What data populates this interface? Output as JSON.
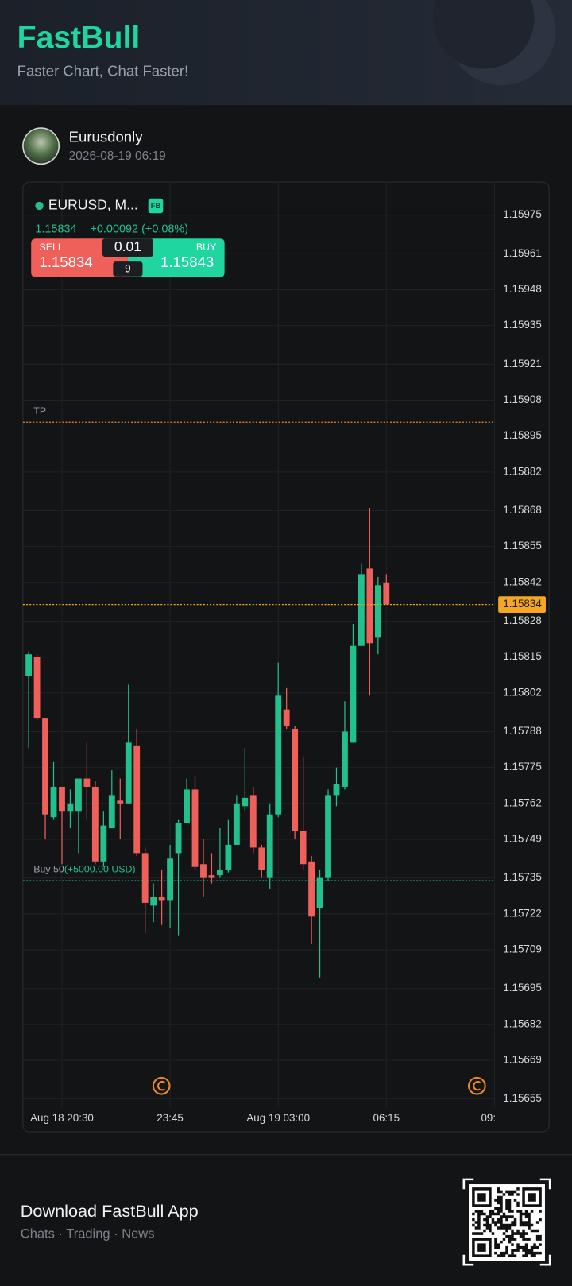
{
  "header": {
    "title": "FastBull",
    "subtitle": "Faster Chart, Chat Faster!"
  },
  "post": {
    "user": "Eurusdonly",
    "time": "2026-08-19 06:19"
  },
  "ticker": {
    "symbol": "EURUSD, M...",
    "badge": "FB",
    "price": "1.15834",
    "change": "+0.00092 (+0.08%)",
    "sell_label": "SELL",
    "sell_price": "1.15834",
    "lot": "0.01",
    "buy_label": "BUY",
    "buy_price": "1.15843",
    "spread": "9"
  },
  "chart_data": {
    "type": "candlestick",
    "categories": [
      null,
      null,
      null,
      null,
      "Aug 18 20:30",
      null,
      null,
      null,
      null,
      null,
      null,
      null,
      null,
      null,
      null,
      null,
      null,
      "23:45",
      null,
      null,
      null,
      null,
      null,
      null,
      null,
      null,
      null,
      null,
      null,
      null,
      "Aug 19 03:00",
      null,
      null,
      null,
      null,
      null,
      null,
      null,
      null,
      null,
      null,
      null,
      null,
      "06:15",
      null,
      null,
      null,
      null,
      null,
      null,
      null,
      null,
      null,
      null,
      null,
      null,
      "09:"
    ],
    "open": [
      1.15808,
      1.15815,
      1.15793,
      1.15757,
      1.15768,
      1.15759,
      1.15759,
      1.15771,
      1.15768,
      1.15741,
      1.15753,
      1.15763,
      1.15762,
      1.15783,
      1.15744,
      1.15725,
      1.15728,
      1.15727,
      1.15744,
      1.15755,
      1.15767,
      1.1574,
      1.15736,
      1.15736,
      1.15738,
      1.15747,
      1.15761,
      1.15765,
      1.15746,
      1.15735,
      1.15758,
      1.15796,
      1.15789,
      1.15752,
      1.15741,
      1.15724,
      1.15735,
      1.15765,
      1.15768,
      1.15784,
      1.15819,
      1.15847,
      1.15822,
      1.15842,
      null,
      null,
      null,
      null,
      null,
      null,
      null,
      null,
      null,
      null,
      null,
      null,
      null
    ],
    "high": [
      1.15817,
      1.15816,
      1.15793,
      1.15777,
      1.15768,
      1.15767,
      1.15771,
      1.15784,
      1.1577,
      1.15759,
      1.15774,
      1.15771,
      1.15805,
      1.15789,
      1.15746,
      1.15733,
      1.15738,
      1.15747,
      1.15756,
      1.15771,
      1.15772,
      1.15749,
      1.15744,
      1.15753,
      1.15756,
      1.15765,
      1.15782,
      1.15768,
      1.15747,
      1.15762,
      1.15813,
      1.15804,
      1.1579,
      1.15779,
      1.15743,
      1.15738,
      1.15767,
      1.15775,
      1.15799,
      1.15827,
      1.15849,
      1.15869,
      1.15844,
      1.15845,
      null,
      null,
      null,
      null,
      null,
      null,
      null,
      null,
      null,
      null,
      null,
      null,
      null
    ],
    "low": [
      1.15782,
      1.15792,
      1.15749,
      1.15756,
      1.1574,
      1.15753,
      1.15744,
      1.15756,
      1.1574,
      1.15739,
      1.15753,
      1.15749,
      1.15762,
      1.15743,
      1.15715,
      1.15719,
      1.15718,
      1.15717,
      1.15714,
      1.15755,
      1.15738,
      1.15728,
      1.15733,
      1.15735,
      1.15737,
      1.15747,
      1.15759,
      1.15744,
      1.15735,
      1.15731,
      1.15757,
      1.15789,
      1.15749,
      1.15738,
      1.15711,
      1.15699,
      1.15734,
      1.15761,
      1.15767,
      1.15784,
      1.15819,
      1.15801,
      1.15816,
      1.15834,
      null,
      null,
      null,
      null,
      null,
      null,
      null,
      null,
      null,
      null,
      null,
      null,
      null
    ],
    "close": [
      1.15816,
      1.15793,
      1.15758,
      1.15768,
      1.15759,
      1.15762,
      1.15771,
      1.15768,
      1.15741,
      1.15754,
      1.15765,
      1.15762,
      1.15784,
      1.15744,
      1.15726,
      1.15728,
      1.15727,
      1.15742,
      1.15755,
      1.15767,
      1.15739,
      1.15735,
      1.15735,
      1.15738,
      1.15747,
      1.15762,
      1.15764,
      1.15746,
      1.15738,
      1.15758,
      1.15801,
      1.1579,
      1.15752,
      1.1574,
      1.15721,
      1.15735,
      1.15765,
      1.15769,
      1.15788,
      1.15819,
      1.15845,
      1.1582,
      1.15841,
      1.15834,
      null,
      null,
      null,
      null,
      null,
      null,
      null,
      null,
      null,
      null,
      null,
      null,
      null
    ],
    "up_color": "#22c08b",
    "down_color": "#f0605a",
    "ylim": [
      1.15652,
      1.15984
    ],
    "yticks": [
      1.15975,
      1.15961,
      1.15948,
      1.15935,
      1.15921,
      1.15908,
      1.15895,
      1.15882,
      1.15868,
      1.15855,
      1.15842,
      1.15828,
      1.15815,
      1.15802,
      1.15788,
      1.15775,
      1.15762,
      1.15749,
      1.15735,
      1.15722,
      1.15709,
      1.15695,
      1.15682,
      1.15669,
      1.15655
    ],
    "grid": true,
    "lines": [
      {
        "label": "TP",
        "value": 1.159,
        "color": "#e8843a"
      },
      {
        "label": "Buy 50",
        "detail": "(+5000.00 USD)",
        "value": 1.15734,
        "color": "#22c08b"
      }
    ],
    "last_price": 1.15834,
    "last_price_color": "#f5a623"
  },
  "footer": {
    "title": "Download FastBull App",
    "subtitle": "Chats · Trading · News"
  }
}
